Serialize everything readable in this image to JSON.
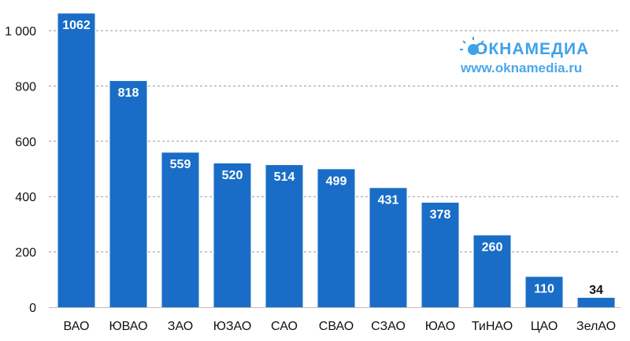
{
  "chart_data": {
    "type": "bar",
    "categories": [
      "ВАО",
      "ЮВАО",
      "ЗАО",
      "ЮЗАО",
      "САО",
      "СВАО",
      "СЗАО",
      "ЮАО",
      "ТиНАО",
      "ЦАО",
      "ЗелАО"
    ],
    "values": [
      1062,
      818,
      559,
      520,
      514,
      499,
      431,
      378,
      260,
      110,
      34
    ],
    "value_labels": [
      "1062",
      "818",
      "559",
      "520",
      "514",
      "499",
      "431",
      "378",
      "260",
      "110",
      "34"
    ],
    "y_ticks": [
      0,
      200,
      400,
      600,
      800,
      1000
    ],
    "y_tick_labels": [
      "0",
      "200",
      "400",
      "600",
      "800",
      "1 000"
    ],
    "ylim": [
      0,
      1000
    ],
    "grid": true,
    "bar_color": "#1a6dc6",
    "grid_color": "#9a9a9a",
    "inside_label_color": "#ffffff",
    "outside_label_color": "#111111"
  },
  "watermark": {
    "brand": "ОКНАМЕДИА",
    "url": "www.oknamedia.ru",
    "brand_color": "#3fa2e8",
    "url_color": "#4aa7ea"
  }
}
